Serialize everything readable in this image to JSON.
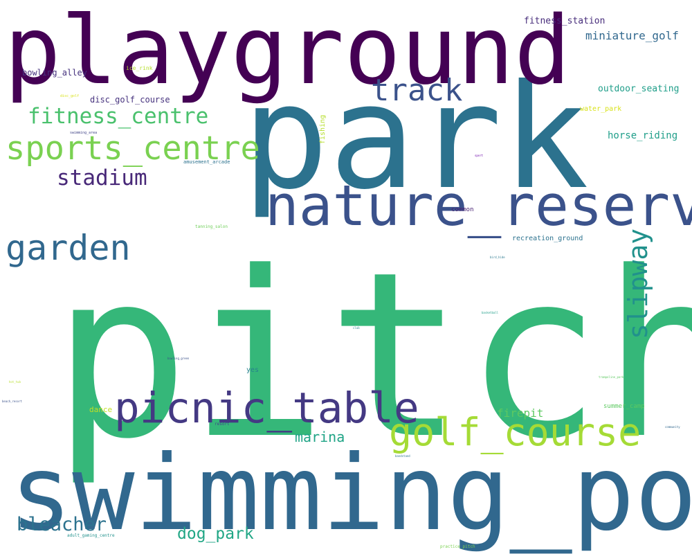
{
  "words": [
    {
      "text": "pitch",
      "color": "#35b779"
    },
    {
      "text": "swimming_pool",
      "color": "#31688e"
    },
    {
      "text": "park",
      "color": "#2c728e"
    },
    {
      "text": "playground",
      "color": "#440154"
    },
    {
      "text": "nature_reserve",
      "color": "#3b528b"
    },
    {
      "text": "picnic_table",
      "color": "#443983"
    },
    {
      "text": "golf_course",
      "color": "#a5db36"
    },
    {
      "text": "sports_centre",
      "color": "#7ad151"
    },
    {
      "text": "garden",
      "color": "#31688e"
    },
    {
      "text": "track",
      "color": "#3b528b"
    },
    {
      "text": "slipway",
      "color": "#21918c"
    },
    {
      "text": "fitness_centre",
      "color": "#4ac16d"
    },
    {
      "text": "stadium",
      "color": "#482878"
    },
    {
      "text": "bleacher",
      "color": "#2c728e"
    },
    {
      "text": "dog_park",
      "color": "#21a685"
    },
    {
      "text": "marina",
      "color": "#20a486"
    },
    {
      "text": "firepit",
      "color": "#5ec962"
    },
    {
      "text": "miniature_golf",
      "color": "#31688e"
    },
    {
      "text": "fitness_station",
      "color": "#472d7b"
    },
    {
      "text": "outdoor_seating",
      "color": "#1f9e89"
    },
    {
      "text": "horse_riding",
      "color": "#1f9e89"
    },
    {
      "text": "bowling_alley",
      "color": "#46327e"
    },
    {
      "text": "disc_golf_course",
      "color": "#46327e"
    },
    {
      "text": "recreation_ground",
      "color": "#2c728e"
    },
    {
      "text": "water_park",
      "color": "#d8e219"
    },
    {
      "text": "ice_rink",
      "color": "#b5de2b"
    },
    {
      "text": "fishing",
      "color": "#b5de2b"
    },
    {
      "text": "common",
      "color": "#482173"
    },
    {
      "text": "dance",
      "color": "#c2df23"
    },
    {
      "text": "yes",
      "color": "#26828e"
    },
    {
      "text": "summer_camp",
      "color": "#5ec962"
    },
    {
      "text": "amusement_arcade",
      "color": "#2c728e"
    },
    {
      "text": "tanning_salon",
      "color": "#6ece58"
    },
    {
      "text": "resort",
      "color": "#3e4989"
    },
    {
      "text": "swimming_area",
      "color": "#414487"
    },
    {
      "text": "disc_golf",
      "color": "#d8e219"
    },
    {
      "text": "sport",
      "color": "#6a00a8"
    },
    {
      "text": "bird_hide",
      "color": "#2a788e"
    },
    {
      "text": "basketball",
      "color": "#1f9e89"
    },
    {
      "text": "club",
      "color": "#26828e"
    },
    {
      "text": "bowling_green",
      "color": "#3b528b"
    },
    {
      "text": "trampoline_park",
      "color": "#5ec962"
    },
    {
      "text": "bandstand",
      "color": "#2c728e"
    },
    {
      "text": "community",
      "color": "#31688e"
    },
    {
      "text": "adult_gaming_centre",
      "color": "#21918c"
    },
    {
      "text": "practice_pitch",
      "color": "#7ad151"
    },
    {
      "text": "beach_resort",
      "color": "#3b528b"
    },
    {
      "text": "hot_tub",
      "color": "#b5de2b"
    }
  ]
}
